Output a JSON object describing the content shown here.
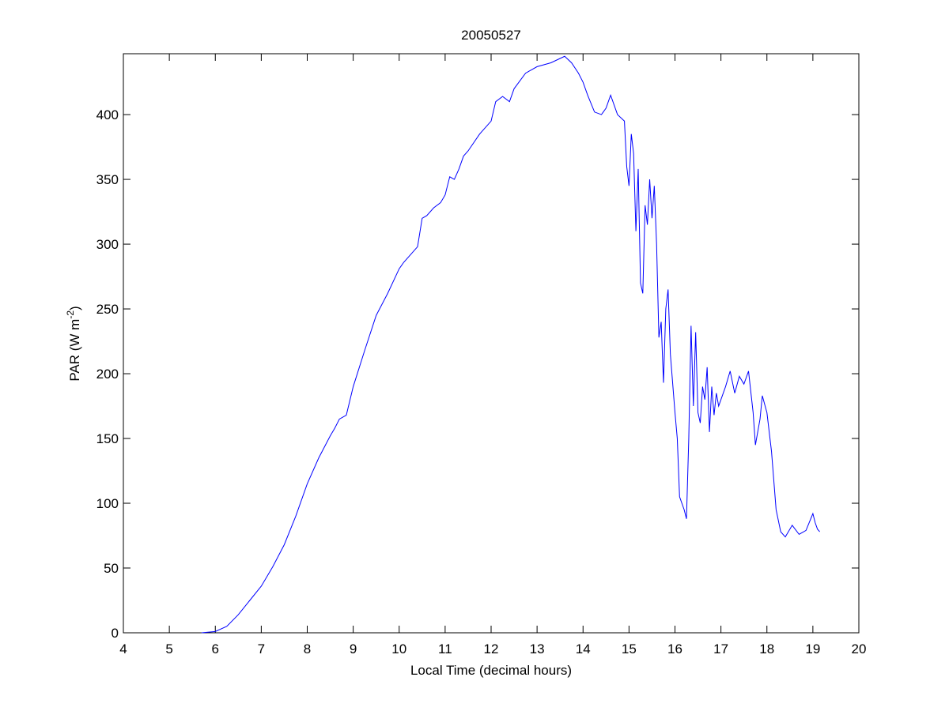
{
  "chart_data": {
    "type": "line",
    "title": "20050527",
    "xlabel": "Local Time (decimal hours)",
    "ylabel": [
      "PAR (W m",
      "-2",
      ")"
    ],
    "color": "#0000ff",
    "x": [
      5.7,
      6.0,
      6.25,
      6.5,
      6.75,
      7.0,
      7.25,
      7.5,
      7.75,
      8.0,
      8.25,
      8.5,
      8.6,
      8.7,
      8.85,
      9.0,
      9.25,
      9.5,
      9.75,
      10.0,
      10.1,
      10.25,
      10.4,
      10.5,
      10.6,
      10.75,
      10.9,
      11.0,
      11.1,
      11.2,
      11.3,
      11.4,
      11.5,
      11.75,
      12.0,
      12.1,
      12.25,
      12.4,
      12.5,
      12.75,
      13.0,
      13.3,
      13.6,
      13.75,
      13.9,
      14.0,
      14.1,
      14.25,
      14.4,
      14.5,
      14.6,
      14.75,
      14.9,
      14.95,
      15.0,
      15.05,
      15.1,
      15.15,
      15.2,
      15.25,
      15.3,
      15.35,
      15.4,
      15.45,
      15.5,
      15.55,
      15.6,
      15.65,
      15.7,
      15.75,
      15.8,
      15.85,
      15.9,
      16.0,
      16.05,
      16.1,
      16.2,
      16.25,
      16.3,
      16.35,
      16.4,
      16.45,
      16.5,
      16.55,
      16.6,
      16.65,
      16.7,
      16.75,
      16.8,
      16.85,
      16.9,
      16.95,
      17.0,
      17.1,
      17.2,
      17.3,
      17.4,
      17.5,
      17.6,
      17.7,
      17.75,
      17.85,
      17.9,
      18.0,
      18.1,
      18.2,
      18.3,
      18.4,
      18.55,
      18.7,
      18.85,
      19.0,
      19.05,
      19.1,
      19.15
    ],
    "values": [
      0,
      1,
      5,
      14,
      25,
      36,
      51,
      68,
      90,
      115,
      135,
      152,
      158,
      165,
      168,
      190,
      218,
      245,
      262,
      281,
      286,
      292,
      298,
      320,
      322,
      328,
      332,
      338,
      352,
      350,
      358,
      368,
      372,
      385,
      395,
      410,
      414,
      410,
      420,
      432,
      437,
      440,
      445,
      440,
      432,
      425,
      415,
      402,
      400,
      405,
      415,
      400,
      395,
      360,
      345,
      385,
      370,
      310,
      358,
      270,
      262,
      330,
      315,
      350,
      320,
      345,
      300,
      228,
      240,
      193,
      250,
      265,
      215,
      170,
      150,
      105,
      95,
      88,
      150,
      237,
      175,
      232,
      170,
      162,
      190,
      180,
      205,
      155,
      190,
      168,
      185,
      175,
      180,
      190,
      202,
      185,
      198,
      192,
      202,
      170,
      145,
      165,
      183,
      170,
      140,
      95,
      78,
      74,
      83,
      76,
      79,
      92,
      85,
      80,
      78
    ],
    "xlim": [
      4,
      20
    ],
    "xticks": [
      4,
      5,
      6,
      7,
      8,
      9,
      10,
      11,
      12,
      13,
      14,
      15,
      16,
      17,
      18,
      19,
      20
    ],
    "ylim": [
      0,
      447
    ],
    "yticks": [
      0,
      50,
      100,
      150,
      200,
      250,
      300,
      350,
      400
    ]
  }
}
